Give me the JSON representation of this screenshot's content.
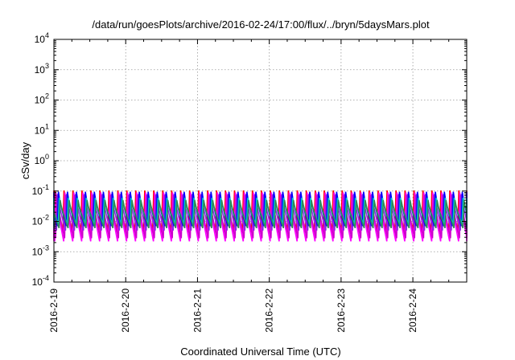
{
  "chart_data": {
    "type": "line",
    "title": "/data/run/goesPlots/archive/2016-02-24/17:00/flux/../bryn/5daysMars.plot",
    "xlabel": "Coordinated Universal Time (UTC)",
    "ylabel": "cSv/day",
    "yscale": "log",
    "ylim": [
      0.0001,
      10000
    ],
    "xlim_days": [
      "2016-02-19T00:00",
      "2016-02-24T18:00"
    ],
    "x_ticks": [
      "2016-2-19",
      "2016-2-20",
      "2016-2-21",
      "2016-2-22",
      "2016-2-23",
      "2016-2-24"
    ],
    "y_ticks": [
      {
        "base": "10",
        "exp": "-4",
        "value": 0.0001
      },
      {
        "base": "10",
        "exp": "-3",
        "value": 0.001
      },
      {
        "base": "10",
        "exp": "-2",
        "value": 0.01
      },
      {
        "base": "10",
        "exp": "-1",
        "value": 0.1
      },
      {
        "base": "10",
        "exp": "0",
        "value": 1
      },
      {
        "base": "10",
        "exp": "1",
        "value": 10
      },
      {
        "base": "10",
        "exp": "2",
        "value": 100
      },
      {
        "base": "10",
        "exp": "3",
        "value": 1000
      },
      {
        "base": "10",
        "exp": "4",
        "value": 10000
      }
    ],
    "grid": true,
    "cycles_per_day": 8,
    "series": [
      {
        "color": "#ff0000",
        "peak": 0.105,
        "trough": 0.0045
      },
      {
        "color": "#ff00ff",
        "peak": 0.09,
        "trough": 0.0022
      },
      {
        "color": "#cc00cc",
        "peak": 0.075,
        "trough": 0.0028
      },
      {
        "color": "#8a2be2",
        "peak": 0.08,
        "trough": 0.005
      },
      {
        "color": "#0000ff",
        "peak": 0.095,
        "trough": 0.007
      },
      {
        "color": "#00cccc",
        "peak": 0.06,
        "trough": 0.008
      },
      {
        "color": "#2e8b57",
        "peak": 0.05,
        "trough": 0.006
      }
    ]
  }
}
